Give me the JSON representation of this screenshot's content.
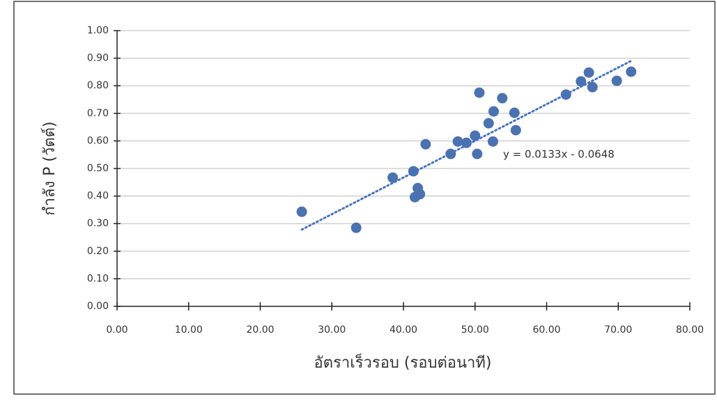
{
  "chart_data": {
    "type": "scatter",
    "x_label": "อัตราเร็วรอบ (รอบต่อนาที)",
    "y_label": "กำลัง P (วัตต์)",
    "series": [
      {
        "color": "#4a72b0",
        "x": [
          25.8,
          33.4,
          38.5,
          41.4,
          41.6,
          42.0,
          42.3,
          43.1,
          46.6,
          47.6,
          48.8,
          50.0,
          50.3,
          50.6,
          51.9,
          52.6,
          52.5,
          53.8,
          55.5,
          55.7,
          62.7,
          64.8,
          65.9,
          66.4,
          69.8,
          71.8
        ],
        "values": [
          0.343,
          0.285,
          0.467,
          0.49,
          0.396,
          0.429,
          0.407,
          0.588,
          0.553,
          0.598,
          0.593,
          0.619,
          0.553,
          0.775,
          0.664,
          0.707,
          0.598,
          0.755,
          0.702,
          0.639,
          0.768,
          0.816,
          0.848,
          0.795,
          0.818,
          0.851
        ]
      }
    ],
    "trendline": {
      "slope": 0.0133,
      "intercept": -0.0648,
      "label": "y = 0.0133x - 0.0648",
      "color": "#4472c4"
    },
    "xlim": [
      0,
      80
    ],
    "xticks": [
      {
        "value": 0,
        "label": "0.00"
      },
      {
        "value": 10,
        "label": "10.00"
      },
      {
        "value": 20,
        "label": "20.00"
      },
      {
        "value": 30,
        "label": "30.00"
      },
      {
        "value": 40,
        "label": "40.00"
      },
      {
        "value": 50,
        "label": "50.00"
      },
      {
        "value": 60,
        "label": "60.00"
      },
      {
        "value": 70,
        "label": "70.00"
      },
      {
        "value": 80,
        "label": "80.00"
      }
    ],
    "ylim": [
      0,
      1
    ],
    "yticks": [
      {
        "value": 0,
        "label": "0.00"
      },
      {
        "value": 0.1,
        "label": "0.10"
      },
      {
        "value": 0.2,
        "label": "0.20"
      },
      {
        "value": 0.3,
        "label": "0.30"
      },
      {
        "value": 0.4,
        "label": "0.40"
      },
      {
        "value": 0.5,
        "label": "0.50"
      },
      {
        "value": 0.6,
        "label": "0.60"
      },
      {
        "value": 0.7,
        "label": "0.70"
      },
      {
        "value": 0.8,
        "label": "0.80"
      },
      {
        "value": 0.9,
        "label": "0.90"
      },
      {
        "value": 1,
        "label": "1.00"
      }
    ],
    "grid": true
  }
}
